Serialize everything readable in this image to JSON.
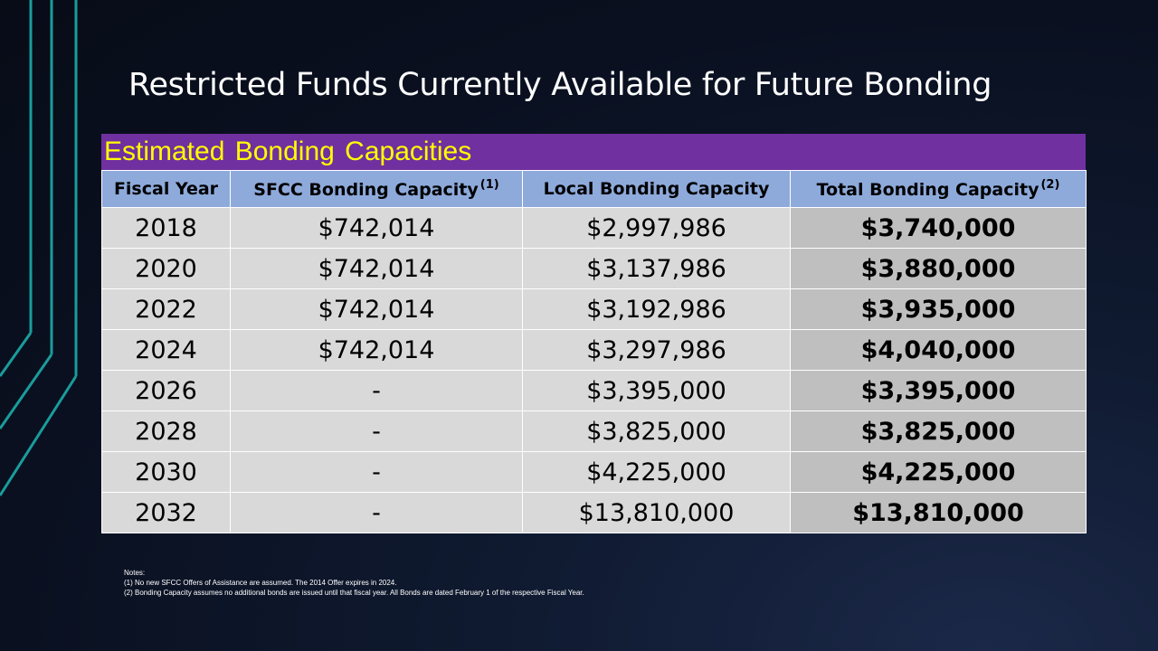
{
  "colors": {
    "banner_bg": "#7030a0",
    "banner_text": "#ffff00",
    "header_bg": "#8eaadb",
    "cell_bg": "#d9d9d9",
    "total_bg": "#bfbfbf",
    "accent_lines": "#1a9c9c"
  },
  "slide": {
    "title": "Restricted Funds Currently Available for Future Bonding"
  },
  "table": {
    "banner": "Estimated Bonding Capacities",
    "headers": [
      {
        "label": "Fiscal Year",
        "note": ""
      },
      {
        "label": "SFCC Bonding Capacity",
        "note": "(1)"
      },
      {
        "label": "Local Bonding Capacity",
        "note": ""
      },
      {
        "label": "Total Bonding Capacity",
        "note": "(2)"
      }
    ],
    "rows": [
      [
        "2018",
        "$742,014",
        "$2,997,986",
        "$3,740,000"
      ],
      [
        "2020",
        "$742,014",
        "$3,137,986",
        "$3,880,000"
      ],
      [
        "2022",
        "$742,014",
        "$3,192,986",
        "$3,935,000"
      ],
      [
        "2024",
        "$742,014",
        "$3,297,986",
        "$4,040,000"
      ],
      [
        "2026",
        "-",
        "$3,395,000",
        "$3,395,000"
      ],
      [
        "2028",
        "-",
        "$3,825,000",
        "$3,825,000"
      ],
      [
        "2030",
        "-",
        "$4,225,000",
        "$4,225,000"
      ],
      [
        "2032",
        "-",
        "$13,810,000",
        "$13,810,000"
      ]
    ]
  },
  "notes": {
    "heading": "Notes:",
    "items": [
      "(1) No new SFCC Offers of Assistance are assumed. The 2014 Offer expires in 2024.",
      "(2) Bonding Capacity assumes no additional bonds are issued until that fiscal year. All Bonds are dated February 1 of the respective Fiscal Year."
    ]
  }
}
